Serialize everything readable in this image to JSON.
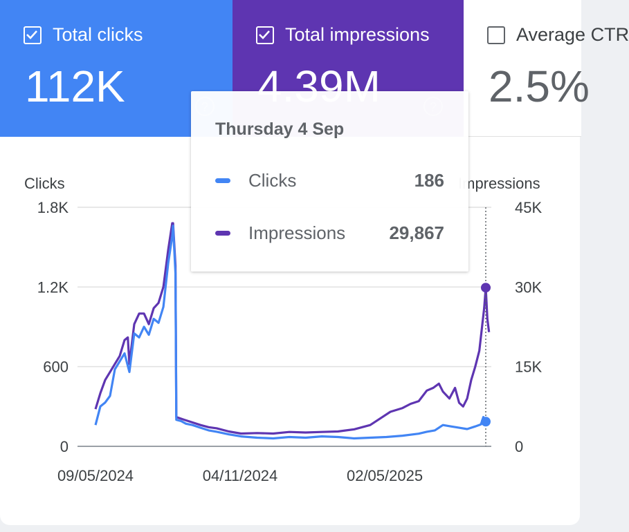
{
  "cards": {
    "clicks": {
      "label": "Total clicks",
      "value": "112K",
      "checked": true,
      "color": "#4285f4"
    },
    "impressions": {
      "label": "Total impressions",
      "value": "4.39M",
      "checked": true,
      "color": "#5e35b1"
    },
    "ctr": {
      "label": "Average CTR",
      "value": "2.5%",
      "checked": false
    }
  },
  "tooltip": {
    "date": "Thursday 4 Sep",
    "rows": [
      {
        "label": "Clicks",
        "value": "186",
        "color": "#4285f4"
      },
      {
        "label": "Impressions",
        "value": "29,867",
        "color": "#5e35b1"
      }
    ]
  },
  "chart_data": {
    "type": "line",
    "title": "",
    "x_tick_labels": [
      "09/05/2024",
      "04/11/2024",
      "02/05/2025"
    ],
    "x_range_days": [
      0,
      483
    ],
    "x_tick_days": [
      0,
      179,
      358
    ],
    "left_axis": {
      "label": "Clicks",
      "ticks": [
        "0",
        "600",
        "1.2K",
        "1.8K"
      ],
      "range": [
        0,
        1800
      ]
    },
    "right_axis": {
      "label": "Impressions",
      "ticks": [
        "0",
        "15K",
        "30K",
        "45K"
      ],
      "range": [
        0,
        45000
      ]
    },
    "grid": true,
    "hover_day": 483,
    "series": [
      {
        "name": "Clicks",
        "axis": "left",
        "color": "#4285f4",
        "points": [
          [
            0,
            160
          ],
          [
            6,
            300
          ],
          [
            12,
            330
          ],
          [
            18,
            380
          ],
          [
            24,
            580
          ],
          [
            30,
            640
          ],
          [
            36,
            700
          ],
          [
            42,
            560
          ],
          [
            48,
            850
          ],
          [
            54,
            820
          ],
          [
            60,
            900
          ],
          [
            66,
            840
          ],
          [
            72,
            960
          ],
          [
            78,
            930
          ],
          [
            84,
            1050
          ],
          [
            90,
            1380
          ],
          [
            95,
            1580
          ],
          [
            96,
            1660
          ],
          [
            99,
            1300
          ],
          [
            100,
            200
          ],
          [
            106,
            190
          ],
          [
            112,
            170
          ],
          [
            120,
            160
          ],
          [
            130,
            140
          ],
          [
            140,
            120
          ],
          [
            150,
            110
          ],
          [
            165,
            90
          ],
          [
            180,
            75
          ],
          [
            200,
            65
          ],
          [
            220,
            60
          ],
          [
            240,
            70
          ],
          [
            260,
            65
          ],
          [
            280,
            75
          ],
          [
            300,
            70
          ],
          [
            320,
            60
          ],
          [
            340,
            65
          ],
          [
            360,
            70
          ],
          [
            380,
            80
          ],
          [
            400,
            95
          ],
          [
            410,
            110
          ],
          [
            420,
            120
          ],
          [
            430,
            160
          ],
          [
            440,
            150
          ],
          [
            450,
            140
          ],
          [
            460,
            130
          ],
          [
            470,
            150
          ],
          [
            477,
            165
          ],
          [
            480,
            220
          ],
          [
            483,
            186
          ]
        ]
      },
      {
        "name": "Impressions",
        "axis": "right",
        "color": "#5e35b1",
        "points": [
          [
            0,
            7000
          ],
          [
            6,
            10000
          ],
          [
            12,
            12500
          ],
          [
            18,
            14000
          ],
          [
            24,
            15500
          ],
          [
            30,
            17000
          ],
          [
            36,
            20000
          ],
          [
            40,
            20500
          ],
          [
            42,
            15500
          ],
          [
            48,
            23000
          ],
          [
            54,
            25000
          ],
          [
            60,
            25000
          ],
          [
            66,
            23000
          ],
          [
            72,
            26000
          ],
          [
            78,
            27000
          ],
          [
            84,
            30000
          ],
          [
            90,
            37000
          ],
          [
            95,
            42000
          ],
          [
            96,
            42000
          ],
          [
            99,
            34000
          ],
          [
            100,
            5500
          ],
          [
            110,
            5000
          ],
          [
            120,
            4500
          ],
          [
            130,
            4000
          ],
          [
            140,
            3600
          ],
          [
            150,
            3400
          ],
          [
            165,
            2800
          ],
          [
            180,
            2400
          ],
          [
            200,
            2500
          ],
          [
            220,
            2400
          ],
          [
            240,
            2700
          ],
          [
            260,
            2600
          ],
          [
            280,
            2700
          ],
          [
            300,
            2800
          ],
          [
            320,
            3200
          ],
          [
            340,
            4000
          ],
          [
            355,
            5500
          ],
          [
            365,
            6500
          ],
          [
            380,
            7200
          ],
          [
            390,
            8000
          ],
          [
            400,
            8500
          ],
          [
            410,
            10500
          ],
          [
            418,
            11000
          ],
          [
            425,
            11800
          ],
          [
            430,
            10300
          ],
          [
            438,
            9000
          ],
          [
            445,
            11000
          ],
          [
            450,
            8200
          ],
          [
            455,
            7500
          ],
          [
            460,
            9000
          ],
          [
            465,
            12500
          ],
          [
            470,
            15000
          ],
          [
            475,
            18000
          ],
          [
            478,
            22000
          ],
          [
            481,
            26000
          ],
          [
            483,
            29867
          ],
          [
            485,
            24000
          ],
          [
            487,
            21500
          ]
        ]
      }
    ]
  }
}
